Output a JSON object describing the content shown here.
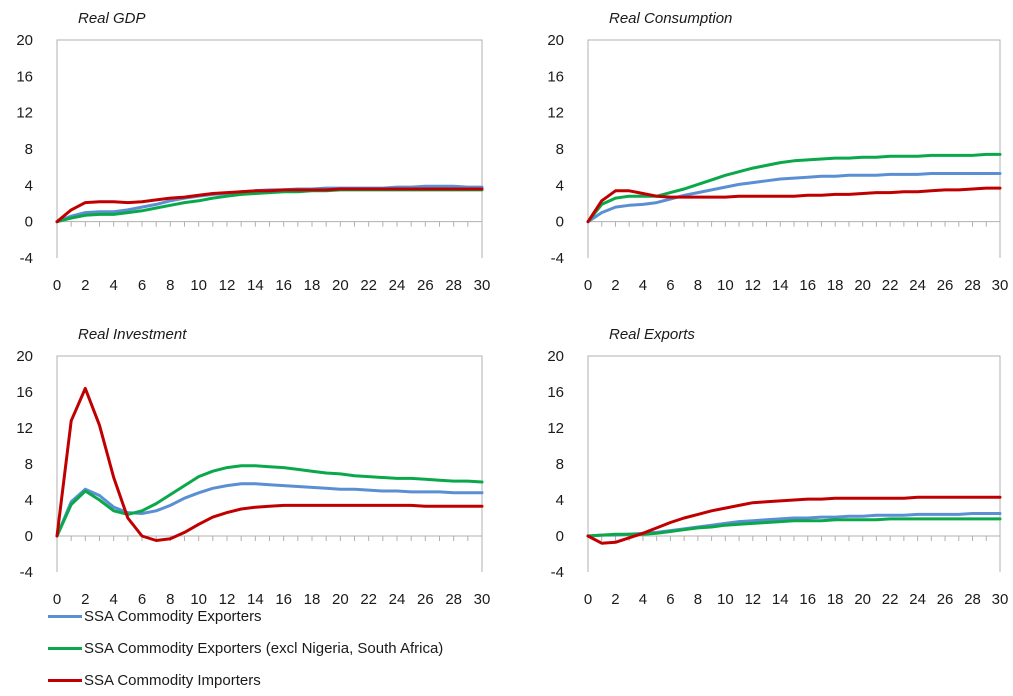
{
  "x": [
    0,
    1,
    2,
    3,
    4,
    5,
    6,
    7,
    8,
    9,
    10,
    11,
    12,
    13,
    14,
    15,
    16,
    17,
    18,
    19,
    20,
    21,
    22,
    23,
    24,
    25,
    26,
    27,
    28,
    29,
    30
  ],
  "x_tick_labels": [
    "0",
    "2",
    "4",
    "6",
    "8",
    "10",
    "12",
    "14",
    "16",
    "18",
    "20",
    "22",
    "24",
    "26",
    "28",
    "30"
  ],
  "y_ticks": [
    20,
    16,
    12,
    8,
    4,
    0,
    -4
  ],
  "series": [
    {
      "key": "exporters",
      "name": "SSA Commodity Exporters",
      "color": "#5b8fd4"
    },
    {
      "key": "exporters_excl",
      "name": "SSA Commodity Exporters (excl Nigeria, South Africa)",
      "color": "#0aa84a"
    },
    {
      "key": "importers",
      "name": "SSA Commodity Importers",
      "color": "#c00000"
    }
  ],
  "chart_data": [
    {
      "type": "line",
      "title": "Real GDP",
      "ylim": [
        -4,
        20
      ],
      "series": [
        {
          "name": "SSA Commodity Exporters",
          "values": [
            0,
            0.6,
            1.0,
            1.1,
            1.1,
            1.3,
            1.6,
            1.9,
            2.3,
            2.6,
            2.8,
            3.0,
            3.1,
            3.3,
            3.4,
            3.5,
            3.5,
            3.6,
            3.6,
            3.7,
            3.7,
            3.7,
            3.7,
            3.7,
            3.8,
            3.8,
            3.9,
            3.9,
            3.9,
            3.8,
            3.8
          ]
        },
        {
          "name": "SSA Commodity Exporters (excl Nigeria, South Africa)",
          "values": [
            0,
            0.4,
            0.7,
            0.8,
            0.8,
            1.0,
            1.2,
            1.5,
            1.8,
            2.1,
            2.3,
            2.6,
            2.8,
            3.0,
            3.1,
            3.2,
            3.3,
            3.3,
            3.4,
            3.4,
            3.5,
            3.5,
            3.5,
            3.5,
            3.5,
            3.5,
            3.5,
            3.5,
            3.5,
            3.5,
            3.5
          ]
        },
        {
          "name": "SSA Commodity Importers",
          "values": [
            0,
            1.3,
            2.1,
            2.2,
            2.2,
            2.1,
            2.2,
            2.4,
            2.6,
            2.7,
            2.9,
            3.1,
            3.2,
            3.3,
            3.4,
            3.4,
            3.5,
            3.5,
            3.5,
            3.5,
            3.6,
            3.6,
            3.6,
            3.6,
            3.6,
            3.6,
            3.6,
            3.6,
            3.6,
            3.6,
            3.6
          ]
        }
      ]
    },
    {
      "type": "line",
      "title": "Real Consumption",
      "ylim": [
        -4,
        20
      ],
      "series": [
        {
          "name": "SSA Commodity Exporters",
          "values": [
            0,
            1.0,
            1.6,
            1.8,
            1.9,
            2.1,
            2.5,
            2.9,
            3.2,
            3.5,
            3.8,
            4.1,
            4.3,
            4.5,
            4.7,
            4.8,
            4.9,
            5.0,
            5.0,
            5.1,
            5.1,
            5.1,
            5.2,
            5.2,
            5.2,
            5.3,
            5.3,
            5.3,
            5.3,
            5.3,
            5.3
          ]
        },
        {
          "name": "SSA Commodity Exporters (excl Nigeria, South Africa)",
          "values": [
            0,
            1.9,
            2.6,
            2.8,
            2.8,
            2.8,
            3.2,
            3.6,
            4.1,
            4.6,
            5.1,
            5.5,
            5.9,
            6.2,
            6.5,
            6.7,
            6.8,
            6.9,
            7.0,
            7.0,
            7.1,
            7.1,
            7.2,
            7.2,
            7.2,
            7.3,
            7.3,
            7.3,
            7.3,
            7.4,
            7.4
          ]
        },
        {
          "name": "SSA Commodity Importers",
          "values": [
            0,
            2.3,
            3.4,
            3.4,
            3.1,
            2.8,
            2.7,
            2.7,
            2.7,
            2.7,
            2.7,
            2.8,
            2.8,
            2.8,
            2.8,
            2.8,
            2.9,
            2.9,
            3.0,
            3.0,
            3.1,
            3.2,
            3.2,
            3.3,
            3.3,
            3.4,
            3.5,
            3.5,
            3.6,
            3.7,
            3.7
          ]
        }
      ]
    },
    {
      "type": "line",
      "title": "Real Investment",
      "ylim": [
        -4,
        20
      ],
      "series": [
        {
          "name": "SSA Commodity Exporters",
          "values": [
            0,
            3.8,
            5.2,
            4.5,
            3.2,
            2.6,
            2.5,
            2.8,
            3.4,
            4.2,
            4.8,
            5.3,
            5.6,
            5.8,
            5.8,
            5.7,
            5.6,
            5.5,
            5.4,
            5.3,
            5.2,
            5.2,
            5.1,
            5.0,
            5.0,
            4.9,
            4.9,
            4.9,
            4.8,
            4.8,
            4.8
          ]
        },
        {
          "name": "SSA Commodity Exporters (excl Nigeria, South Africa)",
          "values": [
            0,
            3.5,
            5.0,
            4.0,
            2.8,
            2.4,
            2.8,
            3.6,
            4.6,
            5.6,
            6.6,
            7.2,
            7.6,
            7.8,
            7.8,
            7.7,
            7.6,
            7.4,
            7.2,
            7.0,
            6.9,
            6.7,
            6.6,
            6.5,
            6.4,
            6.4,
            6.3,
            6.2,
            6.1,
            6.1,
            6.0
          ]
        },
        {
          "name": "SSA Commodity Importers",
          "values": [
            0,
            12.8,
            16.4,
            12.3,
            6.5,
            2.0,
            0.0,
            -0.5,
            -0.3,
            0.4,
            1.3,
            2.1,
            2.6,
            3.0,
            3.2,
            3.3,
            3.4,
            3.4,
            3.4,
            3.4,
            3.4,
            3.4,
            3.4,
            3.4,
            3.4,
            3.4,
            3.3,
            3.3,
            3.3,
            3.3,
            3.3
          ]
        }
      ]
    },
    {
      "type": "line",
      "title": "Real Exports",
      "ylim": [
        -4,
        20
      ],
      "series": [
        {
          "name": "SSA Commodity Exporters",
          "values": [
            0,
            0.1,
            0.1,
            0.2,
            0.3,
            0.4,
            0.6,
            0.8,
            1.0,
            1.2,
            1.4,
            1.6,
            1.7,
            1.8,
            1.9,
            2.0,
            2.0,
            2.1,
            2.1,
            2.2,
            2.2,
            2.3,
            2.3,
            2.3,
            2.4,
            2.4,
            2.4,
            2.4,
            2.5,
            2.5,
            2.5
          ]
        },
        {
          "name": "SSA Commodity Exporters (excl Nigeria, South Africa)",
          "values": [
            0,
            0.1,
            0.2,
            0.2,
            0.2,
            0.3,
            0.5,
            0.7,
            0.9,
            1.0,
            1.2,
            1.3,
            1.4,
            1.5,
            1.6,
            1.7,
            1.7,
            1.7,
            1.8,
            1.8,
            1.8,
            1.8,
            1.9,
            1.9,
            1.9,
            1.9,
            1.9,
            1.9,
            1.9,
            1.9,
            1.9
          ]
        },
        {
          "name": "SSA Commodity Importers",
          "values": [
            0,
            -0.8,
            -0.7,
            -0.2,
            0.3,
            0.9,
            1.5,
            2.0,
            2.4,
            2.8,
            3.1,
            3.4,
            3.7,
            3.8,
            3.9,
            4.0,
            4.1,
            4.1,
            4.2,
            4.2,
            4.2,
            4.2,
            4.2,
            4.2,
            4.3,
            4.3,
            4.3,
            4.3,
            4.3,
            4.3,
            4.3
          ]
        }
      ]
    }
  ]
}
